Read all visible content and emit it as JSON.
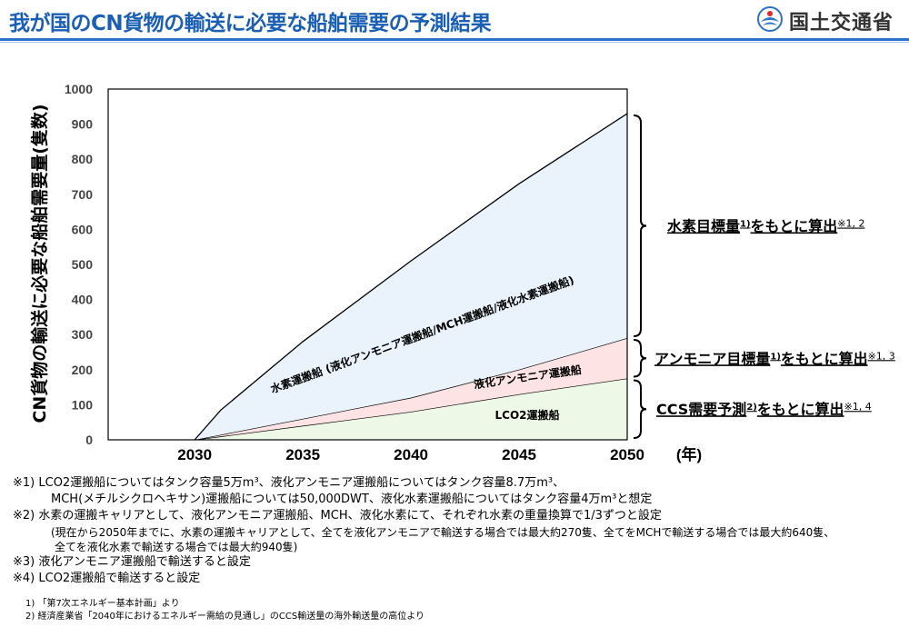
{
  "header": {
    "title": "我が国のCN貨物の輸送に必要な船舶需要の予測結果",
    "logo_text": "国土交通省"
  },
  "chart_data": {
    "type": "area",
    "stacked": true,
    "ylabel": "CN貨物の輸送に必要な船舶需要量(隻数)",
    "xlabel": "(年)",
    "ylim": [
      0,
      1000
    ],
    "xlim": [
      2026,
      2050
    ],
    "yticks": [
      "0",
      "100",
      "200",
      "300",
      "400",
      "500",
      "600",
      "700",
      "800",
      "900",
      "1000"
    ],
    "xticks": [
      "2030",
      "2035",
      "2040",
      "2045",
      "2050"
    ],
    "grid": false,
    "series": [
      {
        "name": "LCO2運搬船",
        "color": "#eef8e6",
        "x": [
          2030,
          2035,
          2040,
          2045,
          2050
        ],
        "values": [
          0,
          40,
          80,
          130,
          175
        ]
      },
      {
        "name": "液化アンモニア運搬船",
        "color": "#fde3e3",
        "x": [
          2030,
          2035,
          2040,
          2045,
          2050
        ],
        "values": [
          0,
          20,
          40,
          70,
          115
        ]
      },
      {
        "name": "水素運搬船 (液化アンモニア運搬船/MCH運搬船/液化水素運搬船)",
        "color": "#eaf3fc",
        "x": [
          2030,
          2031.2,
          2035,
          2040,
          2045,
          2050
        ],
        "values": [
          0,
          70,
          220,
          390,
          530,
          640
        ]
      }
    ],
    "annotations": [
      {
        "text": "水素目標量",
        "sup": "1)",
        "rest": "をもとに算出",
        "note": "※1, 2"
      },
      {
        "text": "アンモニア目標量",
        "sup": "1)",
        "rest": "をもとに算出",
        "note": "※1, 3"
      },
      {
        "text": "CCS需要予測",
        "sup": "2)",
        "rest": "をもとに算出",
        "note": "※1, 4"
      }
    ]
  },
  "notes": {
    "n1a": "※1) LCO2運搬船についてはタンク容量5万m³、液化アンモニア運搬船についてはタンク容量8.7万m³、",
    "n1b": "MCH(メチルシクロヘキサン)運搬船については50,000DWT、液化水素運搬船についてはタンク容量4万m³と想定",
    "n2a": "※2) 水素の運搬キャリアとして、液化アンモニア運搬船、MCH、液化水素にて、それぞれ水素の重量換算で1/3ずつと設定",
    "n2b": "(現在から2050年までに、水素の運搬キャリアとして、全てを液化アンモニアで輸送する場合では最大約270隻、全てをMCHで輸送する場合では最大約640隻、",
    "n2c": "全てを液化水素で輸送する場合では最大約940隻)",
    "n3": "※3) 液化アンモニア運搬船で輸送すると設定",
    "n4": "※4) LCO2運搬船で輸送すると設定",
    "f1": "1) 「第7次エネルギー基本計画」より",
    "f2": "2) 経済産業省「2040年におけるエネルギー需給の見通し」のCCS輸送量の海外輸送量の高位より"
  }
}
